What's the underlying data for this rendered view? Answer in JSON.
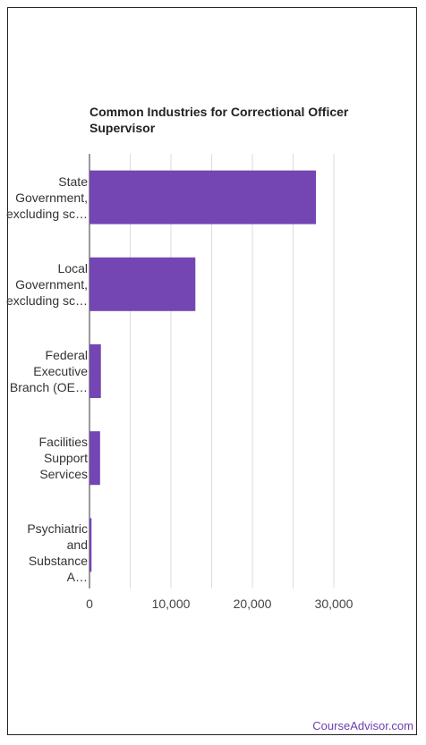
{
  "chart_data": {
    "type": "bar",
    "orientation": "horizontal",
    "title": "Common Industries for Correctional Officer Supervisor",
    "categories": [
      [
        "State",
        "Government,",
        "excluding sc…"
      ],
      [
        "Local",
        "Government,",
        "excluding sc…"
      ],
      [
        "Federal",
        "Executive",
        "Branch (OE…"
      ],
      [
        "Facilities",
        "Support",
        "Services"
      ],
      [
        "Psychiatric",
        "and",
        "Substance A…"
      ]
    ],
    "values": [
      27800,
      13000,
      1400,
      1300,
      250
    ],
    "xlim": [
      0,
      30000
    ],
    "xticks": [
      0,
      10000,
      20000,
      30000
    ],
    "xtick_labels": [
      "0",
      "10,000",
      "20,000",
      "30,000"
    ],
    "grid": true,
    "bar_color": "#7446b3"
  },
  "footer": {
    "brand": "CourseAdvisor.com"
  }
}
